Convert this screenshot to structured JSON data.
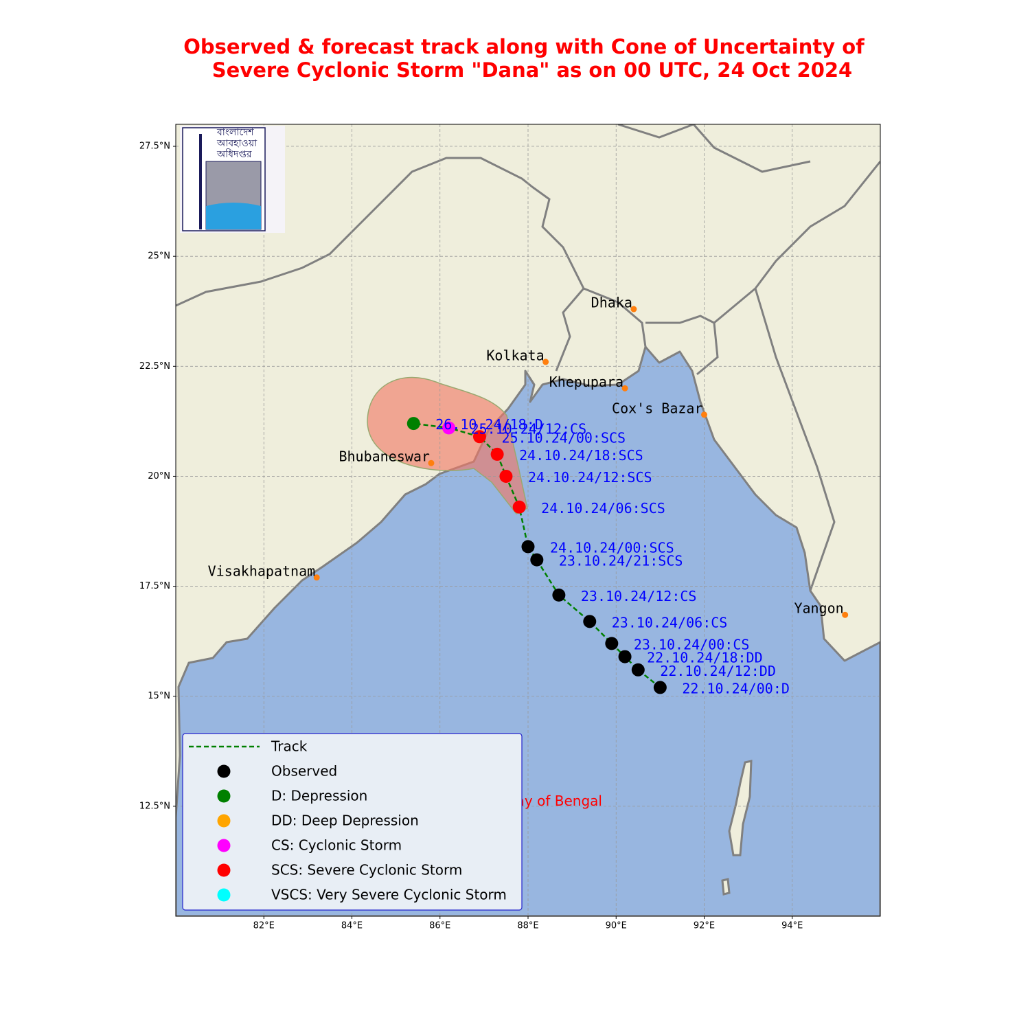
{
  "map": {
    "title": [
      "Observed & forecast track along with Cone of Uncertainty of",
      "Severe Cyclonic Storm \"Dana\" as on 00 UTC, 24 Oct 2024"
    ],
    "logo_text": [
      "বাংলাদেশ",
      "আবহাওয়া",
      "অধিদপ্তর"
    ],
    "xlim": [
      80,
      96
    ],
    "ylim": [
      10,
      28
    ],
    "xticks": [
      {
        "value": 82,
        "label": "82°E"
      },
      {
        "value": 84,
        "label": "84°E"
      },
      {
        "value": 86,
        "label": "86°E"
      },
      {
        "value": 88,
        "label": "88°E"
      },
      {
        "value": 90,
        "label": "90°E"
      },
      {
        "value": 92,
        "label": "92°E"
      },
      {
        "value": 94,
        "label": "94°E"
      }
    ],
    "yticks": [
      {
        "value": 12.5,
        "label": "12.5°N"
      },
      {
        "value": 15,
        "label": "15°N"
      },
      {
        "value": 17.5,
        "label": "17.5°N"
      },
      {
        "value": 20,
        "label": "20°N"
      },
      {
        "value": 22.5,
        "label": "22.5°N"
      },
      {
        "value": 25,
        "label": "25°N"
      },
      {
        "value": 27.5,
        "label": "27.5°N"
      }
    ],
    "grid": true,
    "track_color": "#008000",
    "track": [
      {
        "label": "22.10.24/00:D",
        "lon": 91.0,
        "lat": 15.2,
        "color": "#000000"
      },
      {
        "label": "22.10.24/12:DD",
        "lon": 90.5,
        "lat": 15.6,
        "color": "#000000"
      },
      {
        "label": "22.10.24/18:DD",
        "lon": 90.2,
        "lat": 15.9,
        "color": "#000000"
      },
      {
        "label": "23.10.24/00:CS",
        "lon": 89.9,
        "lat": 16.2,
        "color": "#000000"
      },
      {
        "label": "23.10.24/06:CS",
        "lon": 89.4,
        "lat": 16.7,
        "color": "#000000"
      },
      {
        "label": "23.10.24/12:CS",
        "lon": 88.7,
        "lat": 17.3,
        "color": "#000000"
      },
      {
        "label": "23.10.24/21:SCS",
        "lon": 88.2,
        "lat": 18.1,
        "color": "#000000"
      },
      {
        "label": "24.10.24/00:SCS",
        "lon": 88.0,
        "lat": 18.4,
        "color": "#000000"
      },
      {
        "label": "24.10.24/06:SCS",
        "lon": 87.8,
        "lat": 19.3,
        "color": "#ff0000"
      },
      {
        "label": "24.10.24/12:SCS",
        "lon": 87.5,
        "lat": 20.0,
        "color": "#ff0000"
      },
      {
        "label": "24.10.24/18:SCS",
        "lon": 87.3,
        "lat": 20.5,
        "color": "#ff0000"
      },
      {
        "label": "25.10.24/00:SCS",
        "lon": 86.9,
        "lat": 20.9,
        "color": "#ff0000"
      },
      {
        "label": "25.10.24/12:CS",
        "lon": 86.2,
        "lat": 21.1,
        "color": "#ff00ff"
      },
      {
        "label": "26.10.24/18:D",
        "lon": 85.4,
        "lat": 21.2,
        "color": "#008000"
      }
    ],
    "cities": [
      {
        "name": "Dhaka",
        "lon": 90.4,
        "lat": 23.8
      },
      {
        "name": "Kolkata",
        "lon": 88.4,
        "lat": 22.6
      },
      {
        "name": "Khepupara",
        "lon": 90.2,
        "lat": 22.0
      },
      {
        "name": "Cox's Bazar",
        "lon": 92.0,
        "lat": 21.4
      },
      {
        "name": "Bhubaneswar",
        "lon": 85.8,
        "lat": 20.3
      },
      {
        "name": "Visakhapatnam",
        "lon": 83.2,
        "lat": 17.7
      },
      {
        "name": "Yangon",
        "lon": 95.2,
        "lat": 16.85
      }
    ],
    "sea_label": {
      "text": "Bay of Bengal",
      "lon": 88.6,
      "lat": 12.6
    },
    "legend": [
      {
        "label": "Track",
        "color": "#008000",
        "kind": "line"
      },
      {
        "label": "Observed",
        "color": "#000000",
        "kind": "dot"
      },
      {
        "label": "D: Depression",
        "color": "#008000",
        "kind": "dot"
      },
      {
        "label": "DD: Deep Depression",
        "color": "#ffa500",
        "kind": "dot"
      },
      {
        "label": "CS: Cyclonic Storm",
        "color": "#ff00ff",
        "kind": "dot"
      },
      {
        "label": "SCS: Severe Cyclonic Storm",
        "color": "#ff0000",
        "kind": "dot"
      },
      {
        "label": "VSCS: Very Severe Cyclonic Storm",
        "color": "#00ffff",
        "kind": "dot"
      }
    ]
  }
}
